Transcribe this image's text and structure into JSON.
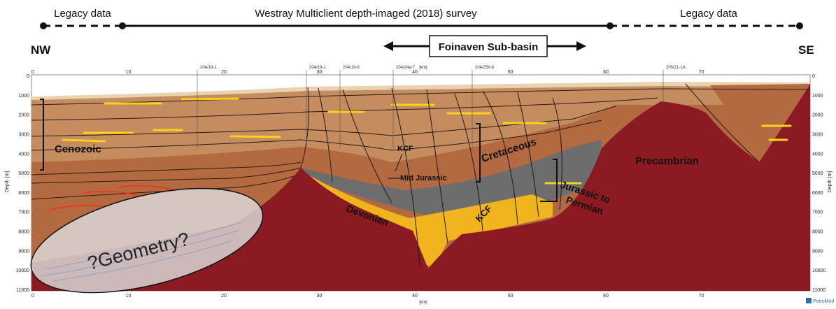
{
  "header": {
    "left_legacy_label": "Legacy data",
    "survey_label": "Westray Multiclient depth-imaged (2018) survey",
    "right_legacy_label": "Legacy data",
    "left_direction": "NW",
    "right_direction": "SE",
    "subbasin_label": "Foinaven Sub-basin"
  },
  "axes": {
    "y_label": "Depth [m]",
    "x_unit_label": "[km]",
    "y_ticks": [
      "0",
      "1000",
      "2000",
      "3000",
      "4000",
      "5000",
      "6000",
      "7000",
      "8000",
      "9000",
      "10000",
      "11000"
    ],
    "x_ticks": [
      "0",
      "10",
      "20",
      "30",
      "40",
      "50",
      "60",
      "70"
    ]
  },
  "wells": [
    "204/18-1",
    "204/19-1",
    "204/19-9",
    "204/24a-7",
    "204/25b-6",
    "205/21-1A"
  ],
  "units": {
    "cenozoic": "Cenozoic",
    "kcf_upper": "KCF",
    "mid_jurassic": "Mid Jurassic",
    "cretaceous": "Cretaceous",
    "kcf_lower": "KCF",
    "jurassic_to_permian_1": "Jurassic to",
    "jurassic_to_permian_2": "Permian",
    "devonian": "Devonian",
    "precambrian": "Precambrian"
  },
  "annotation": "?Geometry?",
  "credit": "PetroMod",
  "colors": {
    "basement": "#8b1a23",
    "cenozoic": "#c28a5e",
    "cretaceous": "#b8693f",
    "devonian": "#f0b41c",
    "jurassic_dark": "#6e6e6e",
    "sand": "#f6e01a"
  }
}
